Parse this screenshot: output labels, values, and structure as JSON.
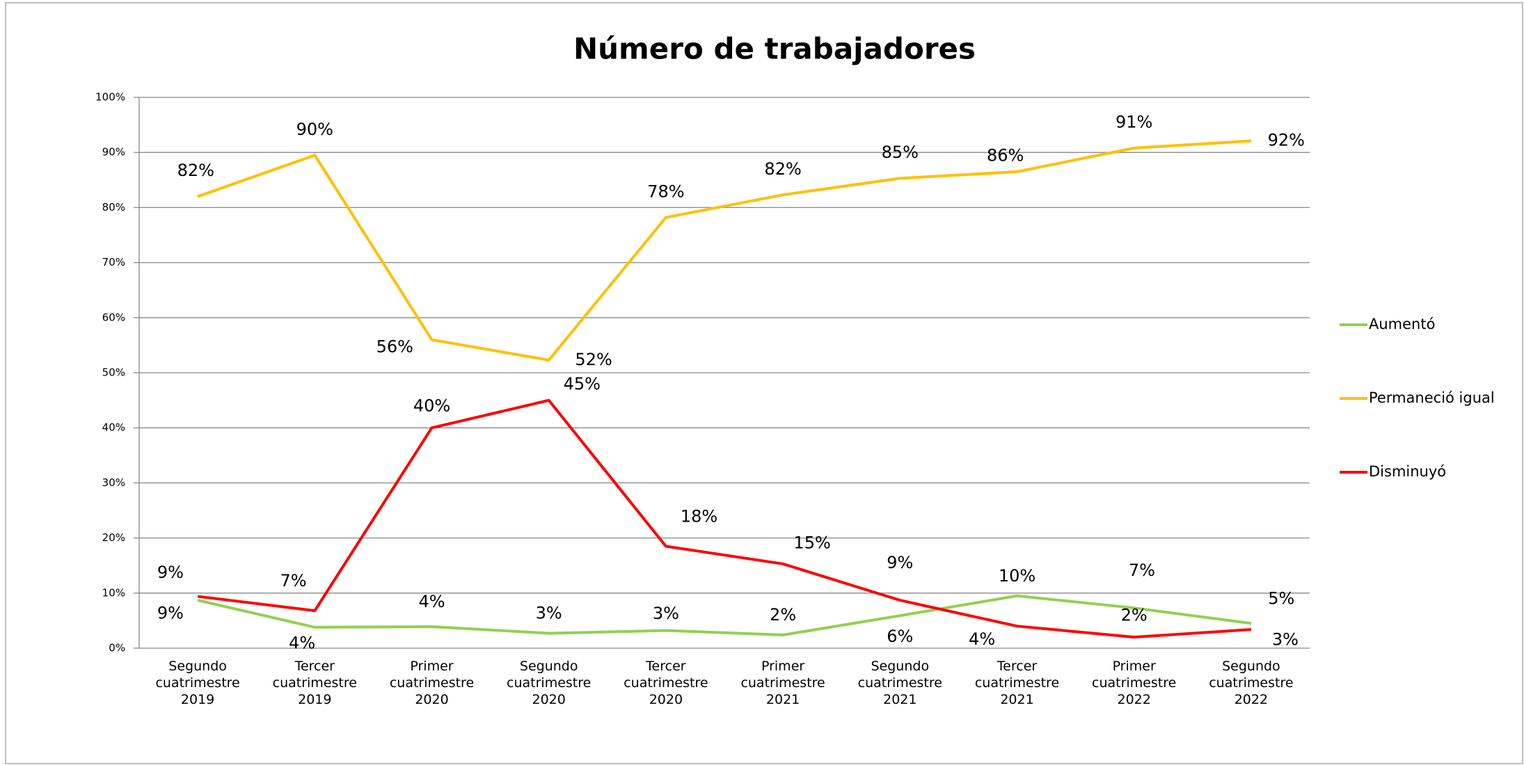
{
  "chart_data": {
    "type": "line",
    "title": "Número de trabajadores",
    "categories": [
      "Segundo cuatrimestre 2019",
      "Tercer cuatrimestre 2019",
      "Primer cuatrimestre 2020",
      "Segundo cuatrimestre 2020",
      "Tercer cuatrimestre 2020",
      "Primer cuatrimestre 2021",
      "Segundo cuatrimestre 2021",
      "Tercer cuatrimestre 2021",
      "Primer cuatrimestre 2022",
      "Segundo cuatrimestre 2022"
    ],
    "series": [
      {
        "name": "Aumentó",
        "color": "#92d050",
        "values": [
          8.7,
          3.8,
          3.9,
          2.7,
          3.2,
          2.4,
          5.9,
          9.5,
          7.3,
          4.5
        ],
        "value_labels": [
          "9%",
          "4%",
          "4%",
          "3%",
          "3%",
          "2%",
          "6%",
          "10%",
          "7%",
          "5%"
        ]
      },
      {
        "name": "Permaneció igual",
        "color": "#ffc000",
        "values": [
          82,
          89.5,
          56,
          52.3,
          78.2,
          82.3,
          85.3,
          86.5,
          90.8,
          92.1
        ],
        "value_labels": [
          "82%",
          "90%",
          "56%",
          "52%",
          "78%",
          "82%",
          "85%",
          "86%",
          "91%",
          "92%"
        ]
      },
      {
        "name": "Disminuyó",
        "color": "#ff0000",
        "values": [
          9.4,
          6.8,
          40,
          45,
          18.5,
          15.3,
          8.7,
          4,
          2,
          3.4
        ],
        "value_labels": [
          "9%",
          "7%",
          "40%",
          "45%",
          "18%",
          "15%",
          "9%",
          "4%",
          "2%",
          "3%"
        ]
      }
    ],
    "ylim": [
      0,
      100
    ],
    "yticks": [
      {
        "value": 0,
        "label": "0%"
      },
      {
        "value": 10,
        "label": "10%"
      },
      {
        "value": 20,
        "label": "20%"
      },
      {
        "value": 30,
        "label": "30%"
      },
      {
        "value": 40,
        "label": "40%"
      },
      {
        "value": 50,
        "label": "50%"
      },
      {
        "value": 60,
        "label": "60%"
      },
      {
        "value": 70,
        "label": "70%"
      },
      {
        "value": 80,
        "label": "80%"
      },
      {
        "value": 90,
        "label": "90%"
      },
      {
        "value": 100,
        "label": "100%"
      }
    ],
    "grid": true,
    "legend": "right"
  }
}
